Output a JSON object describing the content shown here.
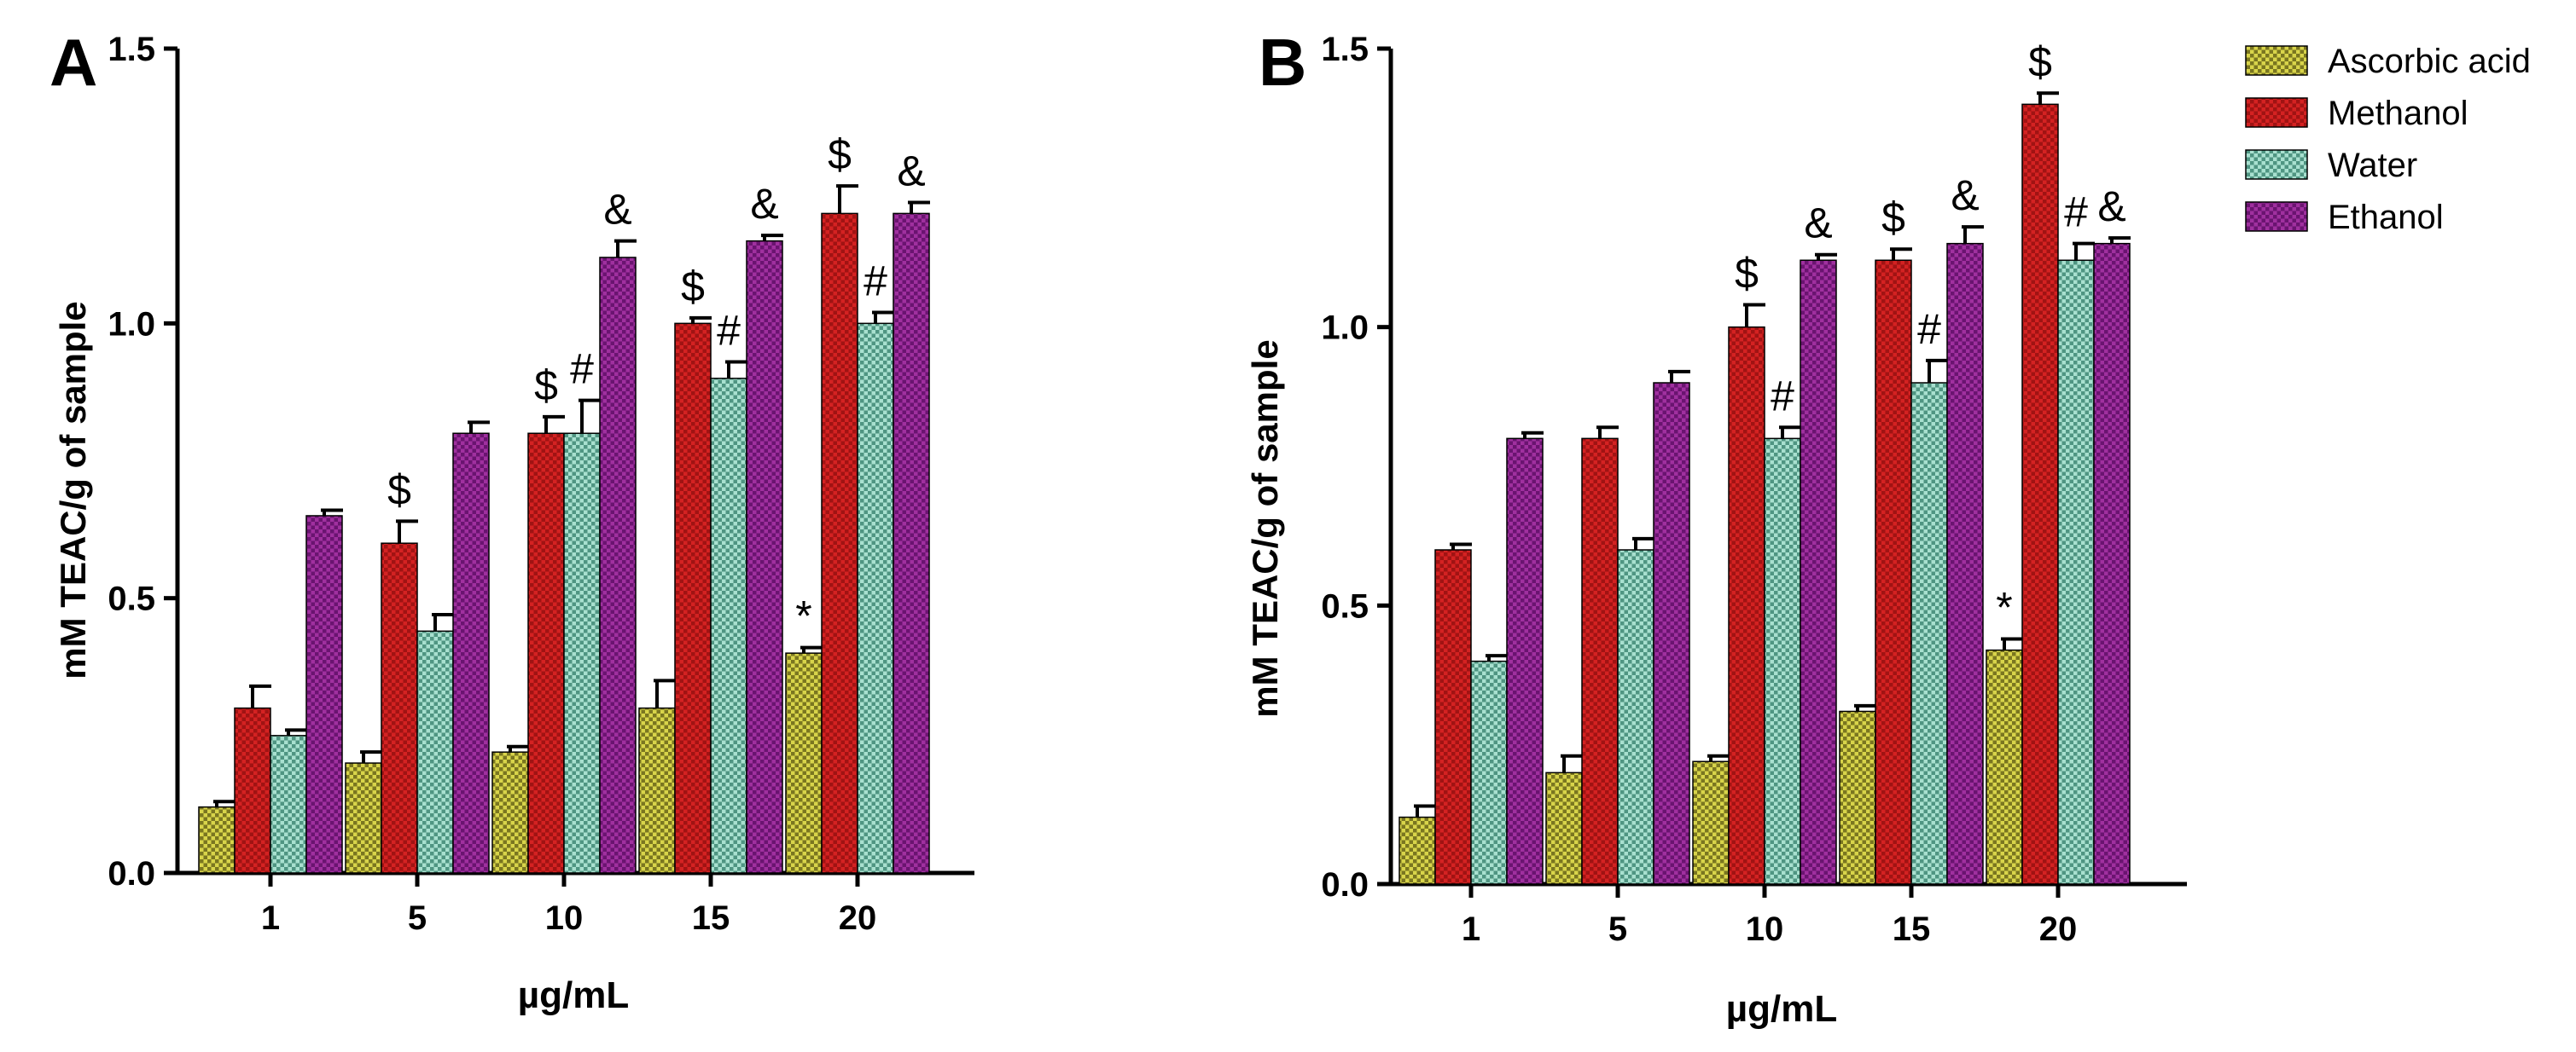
{
  "chart_data": [
    {
      "panel": "A",
      "type": "bar",
      "title": "",
      "xlabel": "µg/mL",
      "ylabel": "mM TEAC/g of sample",
      "ylim": [
        0,
        1.5
      ],
      "yticks": [
        "0.0",
        "0.5",
        "1.0",
        "1.5"
      ],
      "categories": [
        "1",
        "5",
        "10",
        "15",
        "20"
      ],
      "series": [
        {
          "name": "Ascorbic acid",
          "values": [
            0.12,
            0.2,
            0.22,
            0.3,
            0.4
          ],
          "errors": [
            0.01,
            0.02,
            0.01,
            0.05,
            0.01
          ]
        },
        {
          "name": "Methanol",
          "values": [
            0.3,
            0.6,
            0.8,
            1.0,
            1.2
          ],
          "errors": [
            0.04,
            0.04,
            0.03,
            0.01,
            0.05
          ]
        },
        {
          "name": "Water",
          "values": [
            0.25,
            0.44,
            0.8,
            0.9,
            1.0
          ],
          "errors": [
            0.01,
            0.03,
            0.06,
            0.03,
            0.02
          ]
        },
        {
          "name": "Ethanol",
          "values": [
            0.65,
            0.8,
            1.12,
            1.15,
            1.2
          ],
          "errors": [
            0.01,
            0.02,
            0.03,
            0.01,
            0.02
          ]
        }
      ],
      "annotations": [
        {
          "category": "5",
          "series": "Methanol",
          "text": "$"
        },
        {
          "category": "10",
          "series": "Methanol",
          "text": "$"
        },
        {
          "category": "10",
          "series": "Water",
          "text": "#"
        },
        {
          "category": "10",
          "series": "Ethanol",
          "text": "&"
        },
        {
          "category": "15",
          "series": "Methanol",
          "text": "$"
        },
        {
          "category": "15",
          "series": "Water",
          "text": "#"
        },
        {
          "category": "15",
          "series": "Ethanol",
          "text": "&"
        },
        {
          "category": "20",
          "series": "Ascorbic acid",
          "text": "*"
        },
        {
          "category": "20",
          "series": "Methanol",
          "text": "$"
        },
        {
          "category": "20",
          "series": "Water",
          "text": "#"
        },
        {
          "category": "20",
          "series": "Ethanol",
          "text": "&"
        }
      ]
    },
    {
      "panel": "B",
      "type": "bar",
      "title": "",
      "xlabel": "µg/mL",
      "ylabel": "mM TEAC/g of sample",
      "ylim": [
        0,
        1.5
      ],
      "yticks": [
        "0.0",
        "0.5",
        "1.0",
        "1.5"
      ],
      "categories": [
        "1",
        "5",
        "10",
        "15",
        "20"
      ],
      "series": [
        {
          "name": "Ascorbic acid",
          "values": [
            0.12,
            0.2,
            0.22,
            0.31,
            0.42
          ],
          "errors": [
            0.02,
            0.03,
            0.01,
            0.01,
            0.02
          ]
        },
        {
          "name": "Methanol",
          "values": [
            0.6,
            0.8,
            1.0,
            1.12,
            1.4
          ],
          "errors": [
            0.01,
            0.02,
            0.04,
            0.02,
            0.02
          ]
        },
        {
          "name": "Water",
          "values": [
            0.4,
            0.6,
            0.8,
            0.9,
            1.12
          ],
          "errors": [
            0.01,
            0.02,
            0.02,
            0.04,
            0.03
          ]
        },
        {
          "name": "Ethanol",
          "values": [
            0.8,
            0.9,
            1.12,
            1.15,
            1.15
          ],
          "errors": [
            0.01,
            0.02,
            0.01,
            0.03,
            0.01
          ]
        }
      ],
      "annotations": [
        {
          "category": "10",
          "series": "Methanol",
          "text": "$"
        },
        {
          "category": "10",
          "series": "Water",
          "text": "#"
        },
        {
          "category": "10",
          "series": "Ethanol",
          "text": "&"
        },
        {
          "category": "15",
          "series": "Methanol",
          "text": "$"
        },
        {
          "category": "15",
          "series": "Water",
          "text": "#"
        },
        {
          "category": "15",
          "series": "Ethanol",
          "text": "&"
        },
        {
          "category": "20",
          "series": "Ascorbic acid",
          "text": "*"
        },
        {
          "category": "20",
          "series": "Methanol",
          "text": "$"
        },
        {
          "category": "20",
          "series": "Water",
          "text": "#"
        },
        {
          "category": "20",
          "series": "Ethanol",
          "text": "&"
        }
      ]
    }
  ],
  "legend": {
    "placement": "top-right",
    "entries": [
      "Ascorbic acid",
      "Methanol",
      "Water",
      "Ethanol"
    ]
  },
  "colors": {
    "Ascorbic acid": "#c9c53a",
    "Methanol": "#c51c1c",
    "Water": "#8cc9b6",
    "Ethanol": "#8a1f8e"
  }
}
